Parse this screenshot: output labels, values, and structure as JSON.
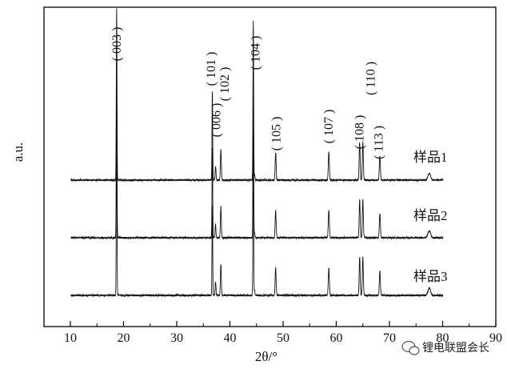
{
  "chart_data": {
    "type": "line",
    "title": "",
    "xlabel": "2θ/°",
    "ylabel": "a.u.",
    "xlim": [
      10,
      90
    ],
    "xticks": [
      10,
      20,
      30,
      40,
      50,
      60,
      70,
      80,
      90
    ],
    "grid": false,
    "peak_labels": [
      {
        "text": "( 003 )",
        "x": 19.5
      },
      {
        "text": "( 101 )",
        "x": 37.2
      },
      {
        "text": "( 006 )",
        "x": 38.2
      },
      {
        "text": "( 102 )",
        "x": 39.8
      },
      {
        "text": "( 104 )",
        "x": 45.6
      },
      {
        "text": "( 105 )",
        "x": 49.5
      },
      {
        "text": "( 107 )",
        "x": 59.3
      },
      {
        "text": "( 108 )",
        "x": 65.1
      },
      {
        "text": "( 110 )",
        "x": 67.2
      },
      {
        "text": "( 113 )",
        "x": 68.7
      }
    ],
    "peaks": [
      {
        "x": 18.7,
        "h": 1.0
      },
      {
        "x": 36.7,
        "h": 0.52
      },
      {
        "x": 37.3,
        "h": 0.08
      },
      {
        "x": 38.3,
        "h": 0.18
      },
      {
        "x": 44.4,
        "h": 0.93
      },
      {
        "x": 48.6,
        "h": 0.16
      },
      {
        "x": 58.6,
        "h": 0.16
      },
      {
        "x": 64.4,
        "h": 0.22
      },
      {
        "x": 65.0,
        "h": 0.22
      },
      {
        "x": 68.2,
        "h": 0.14
      },
      {
        "x": 77.5,
        "h": 0.04
      }
    ],
    "series": [
      {
        "name": "样品1",
        "scale": 1.0
      },
      {
        "name": "样品2",
        "scale": 1.0
      },
      {
        "name": "样品3",
        "scale": 1.0
      }
    ]
  },
  "watermark": {
    "text": "锂电联盟会长",
    "icon": "wechat-icon"
  }
}
